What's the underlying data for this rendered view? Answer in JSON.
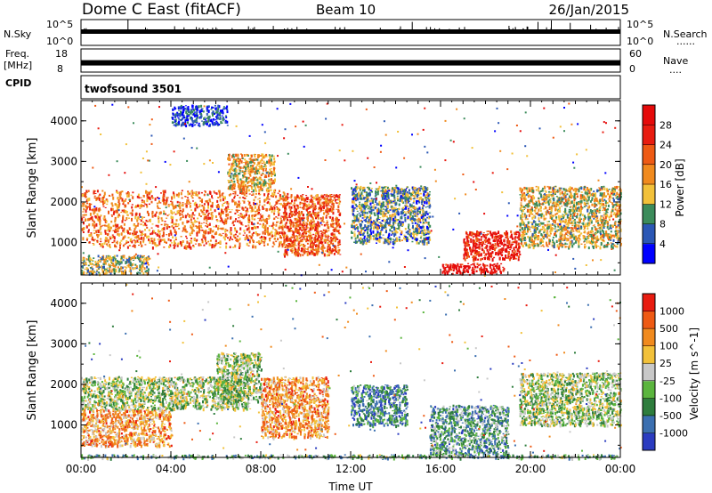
{
  "header": {
    "radar": "Dome C East (fitACF)",
    "beam": "Beam 10",
    "date": "26/Jan/2015"
  },
  "strips": {
    "nsky": {
      "label": "N.Sky",
      "ticks": [
        "10^5",
        "10^0"
      ],
      "right_label": "N.Search",
      "right_ticks": [
        "10^5",
        "10^0"
      ],
      "right_marker": "......"
    },
    "freq": {
      "label_line1": "Freq.",
      "label_line2": "[MHz]",
      "ticks": [
        "18",
        "8"
      ],
      "right_label": "Nave",
      "right_ticks": [
        "60",
        "0"
      ],
      "right_marker": "....",
      "level_fraction": 0.4
    },
    "cpid": {
      "label": "CPID",
      "value": "twofsound 3501"
    }
  },
  "chart_data": [
    {
      "type": "heatmap",
      "name": "Power",
      "xlabel": "Time UT",
      "ylabel": "Slant Range [km]",
      "xlim": [
        0,
        24
      ],
      "ylim": [
        200,
        4500
      ],
      "xticks": [
        "00:00",
        "04:00",
        "08:00",
        "12:00",
        "16:00",
        "20:00",
        "00:00"
      ],
      "xtick_values": [
        0,
        4,
        8,
        12,
        16,
        20,
        24
      ],
      "yticks": [
        1000,
        2000,
        3000,
        4000
      ],
      "colorbar": {
        "label": "Power [dB]",
        "ticks": [
          "28",
          "24",
          "20",
          "16",
          "12",
          "8",
          "4"
        ],
        "colors": [
          "#0000ff",
          "#2b57b5",
          "#3c8c5b",
          "#f2c13a",
          "#f08a1e",
          "#ee5a14",
          "#e81c10",
          "#e50a0a"
        ]
      },
      "regions": [
        {
          "t": [
            0.0,
            9.2
          ],
          "r": [
            900,
            2300
          ],
          "level": 0.65
        },
        {
          "t": [
            0.0,
            3.0
          ],
          "r": [
            250,
            700
          ],
          "level": 0.4
        },
        {
          "t": [
            6.5,
            8.6
          ],
          "r": [
            2300,
            3200
          ],
          "level": 0.5
        },
        {
          "t": [
            9.0,
            11.5
          ],
          "r": [
            700,
            2200
          ],
          "level": 0.7
        },
        {
          "t": [
            12.0,
            15.5
          ],
          "r": [
            1000,
            2400
          ],
          "level": 0.3
        },
        {
          "t": [
            16.0,
            18.8
          ],
          "r": [
            250,
            500
          ],
          "level": 0.95
        },
        {
          "t": [
            17.0,
            19.5
          ],
          "r": [
            600,
            1300
          ],
          "level": 0.85
        },
        {
          "t": [
            19.5,
            24.0
          ],
          "r": [
            900,
            2400
          ],
          "level": 0.45
        },
        {
          "t": [
            4.0,
            6.5
          ],
          "r": [
            3900,
            4400
          ],
          "level": 0.15
        }
      ]
    },
    {
      "type": "heatmap",
      "name": "Velocity",
      "xlabel": "Time UT",
      "ylabel": "Slant Range [km]",
      "xlim": [
        0,
        24
      ],
      "ylim": [
        200,
        4500
      ],
      "xticks": [
        "00:00",
        "04:00",
        "08:00",
        "12:00",
        "16:00",
        "20:00",
        "00:00"
      ],
      "xtick_values": [
        0,
        4,
        8,
        12,
        16,
        20,
        24
      ],
      "yticks": [
        1000,
        2000,
        3000,
        4000
      ],
      "colorbar": {
        "label": "Velocity [m s^-1]",
        "ticks": [
          "1000",
          "500",
          "100",
          "25",
          "-25",
          "-100",
          "-500",
          "-1000"
        ],
        "colors": [
          "#2b3cc0",
          "#3b6fb0",
          "#2e7d3d",
          "#5bb53e",
          "#c8c8c8",
          "#f2c13a",
          "#f08a1e",
          "#ee5a14",
          "#e81c10"
        ]
      },
      "regions": [
        {
          "t": [
            0.0,
            4.0
          ],
          "r": [
            500,
            1400
          ],
          "level": 0.7
        },
        {
          "t": [
            0.0,
            7.5
          ],
          "r": [
            1400,
            2200
          ],
          "level": 0.45
        },
        {
          "t": [
            6.0,
            8.0
          ],
          "r": [
            1600,
            2800
          ],
          "level": 0.45
        },
        {
          "t": [
            8.0,
            11.0
          ],
          "r": [
            700,
            2200
          ],
          "level": 0.72
        },
        {
          "t": [
            12.0,
            14.5
          ],
          "r": [
            1000,
            2000
          ],
          "level": 0.25
        },
        {
          "t": [
            15.5,
            19.0
          ],
          "r": [
            250,
            1500
          ],
          "level": 0.3
        },
        {
          "t": [
            19.5,
            24.0
          ],
          "r": [
            1000,
            2300
          ],
          "level": 0.45
        },
        {
          "t": [
            0.0,
            24.0
          ],
          "r": [
            200,
            280
          ],
          "level": 0.35
        }
      ]
    }
  ]
}
